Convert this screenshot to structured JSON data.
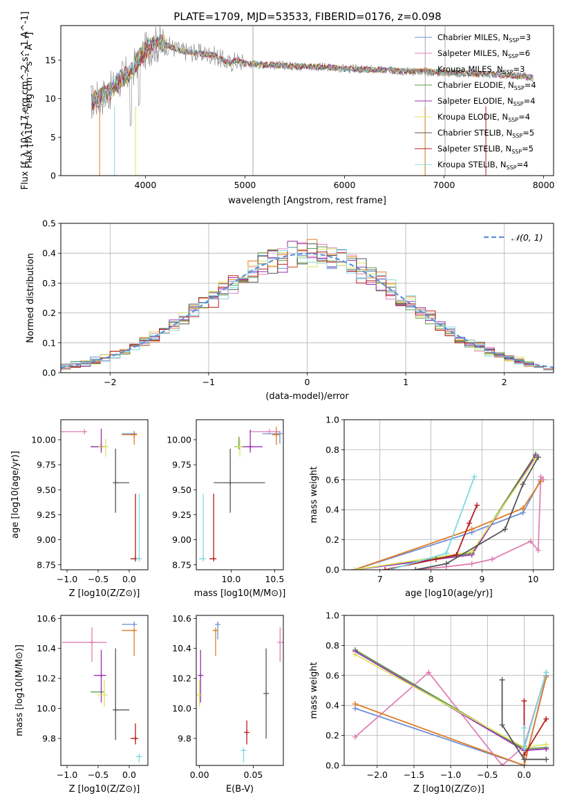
{
  "figure": {
    "title": "PLATE=1709, MJD=53533, FIBERID=0176, z=0.098"
  },
  "colors": {
    "Chabrier MILES": "#6d8fd6",
    "Salpeter MILES": "#e07fb4",
    "Kroupa MILES": "#e07b24",
    "Chabrier ELODIE": "#5b9a47",
    "Salpeter ELODIE": "#9a2fb0",
    "Kroupa ELODIE": "#d9e561",
    "Chabrier STELIB": "#555555",
    "Salpeter STELIB": "#b51b1b",
    "Kroupa STELIB": "#7dd8df",
    "data": "#808080",
    "gauss": "#5b8fd6"
  },
  "chart_data": [
    {
      "id": "spectrum",
      "type": "line",
      "title": "PLATE=1709, MJD=53533, FIBERID=0176, z=0.098",
      "xlabel": "wavelength [Angstrom, rest frame]",
      "ylabel": "Flux [f_λ 10^-17 erg cm^-2 s^-1 A^-1]",
      "xlim": [
        3150,
        8100
      ],
      "ylim": [
        0,
        19.5
      ],
      "xticks": [
        4000,
        5000,
        6000,
        7000,
        8000
      ],
      "yticks": [
        0,
        5,
        10,
        15
      ],
      "legend": "right",
      "series": [
        {
          "name": "Chabrier MILES, N_SSP=3",
          "color": "#6d8fd6"
        },
        {
          "name": "Salpeter MILES, N_SSP=6",
          "color": "#e07fb4"
        },
        {
          "name": "Kroupa MILES, N_SSP=3",
          "color": "#e07b24"
        },
        {
          "name": "Chabrier ELODIE, N_SSP=4",
          "color": "#5b9a47"
        },
        {
          "name": "Salpeter ELODIE, N_SSP=4",
          "color": "#9a2fb0"
        },
        {
          "name": "Kroupa ELODIE, N_SSP=4",
          "color": "#d9e561"
        },
        {
          "name": "Chabrier STELIB, N_SSP=5",
          "color": "#555555"
        },
        {
          "name": "Salpeter STELIB, N_SSP=5",
          "color": "#b51b1b"
        },
        {
          "name": "Kroupa STELIB, N_SSP=4",
          "color": "#7dd8df"
        }
      ],
      "continuum": {
        "x": [
          3450,
          3550,
          3650,
          3750,
          3850,
          3950,
          4050,
          4150,
          4250,
          4350,
          4500,
          4700,
          4850,
          4900,
          5000,
          5200,
          5400,
          5600,
          5800,
          6000,
          6200,
          6400,
          6600,
          6800,
          7000,
          7200,
          7400,
          7600,
          7800,
          7900
        ],
        "y": [
          9.5,
          10.2,
          11.0,
          12.5,
          13.5,
          15.5,
          16.8,
          17.2,
          16.8,
          16.2,
          16.0,
          15.6,
          14.5,
          15.0,
          14.6,
          14.4,
          14.3,
          14.2,
          14.1,
          13.9,
          13.8,
          13.7,
          13.6,
          13.5,
          13.4,
          13.3,
          13.2,
          13.1,
          12.9,
          12.7
        ]
      }
    },
    {
      "id": "residuals",
      "type": "histogram",
      "xlabel": "(data-model)/error",
      "ylabel": "Normed distribution",
      "xlim": [
        -2.5,
        2.5
      ],
      "ylim": [
        0,
        0.5
      ],
      "xticks": [
        -2,
        -1,
        0,
        1,
        2
      ],
      "yticks": [
        0.0,
        0.1,
        0.2,
        0.3,
        0.4,
        0.5
      ],
      "legend_label": "N(0,1)",
      "legend": "top-right",
      "grid": true,
      "bin_width": 0.1
    },
    {
      "id": "age_vs_Z",
      "type": "scatter",
      "xlabel": "Z [log10(Z/Z⊙)]",
      "ylabel": "age [log10(age/yr)]",
      "xlim": [
        -1.1,
        0.3
      ],
      "ylim": [
        8.7,
        10.2
      ],
      "xticks": [
        -1.0,
        -0.5,
        0.0
      ],
      "yticks": [
        8.75,
        9.0,
        9.25,
        9.5,
        9.75,
        10.0
      ],
      "points": [
        {
          "model": "Chabrier MILES",
          "x": 0.08,
          "y": 10.06,
          "xerr": [
            0.2,
            0.0
          ],
          "yerr": [
            0.0,
            0.0
          ]
        },
        {
          "model": "Salpeter MILES",
          "x": -0.72,
          "y": 10.08,
          "xerr": [
            0.38,
            0.0
          ],
          "yerr": [
            0.0,
            0.0
          ]
        },
        {
          "model": "Kroupa MILES",
          "x": 0.08,
          "y": 10.05,
          "xerr": [
            0.2,
            0.0
          ],
          "yerr": [
            0.1,
            0.0
          ]
        },
        {
          "model": "Chabrier ELODIE",
          "x": -0.45,
          "y": 9.93,
          "xerr": [
            0.17,
            0.0
          ],
          "yerr": [
            0.0,
            0.0
          ]
        },
        {
          "model": "Salpeter ELODIE",
          "x": -0.45,
          "y": 9.93,
          "xerr": [
            0.17,
            0.08
          ],
          "yerr": [
            0.06,
            0.18
          ]
        },
        {
          "model": "Kroupa ELODIE",
          "x": -0.38,
          "y": 9.93,
          "xerr": [
            0.12,
            0.0
          ],
          "yerr": [
            0.1,
            0.08
          ]
        },
        {
          "model": "Chabrier STELIB",
          "x": -0.22,
          "y": 9.57,
          "xerr": [
            0.0,
            0.22
          ],
          "yerr": [
            0.3,
            0.34
          ]
        },
        {
          "model": "Salpeter STELIB",
          "x": 0.1,
          "y": 8.81,
          "xerr": [
            0.08,
            0.0
          ],
          "yerr": [
            0.0,
            0.65
          ]
        },
        {
          "model": "Kroupa STELIB",
          "x": 0.16,
          "y": 8.81,
          "xerr": [
            0.05,
            0.0
          ],
          "yerr": [
            0.0,
            0.65
          ]
        }
      ]
    },
    {
      "id": "age_vs_mass",
      "type": "scatter",
      "xlabel": "mass [log10(M/M⊙)]",
      "ylabel": "",
      "xlim": [
        9.6,
        10.6
      ],
      "ylim": [
        8.7,
        10.2
      ],
      "xticks": [
        10.0,
        10.5
      ],
      "yticks": [
        8.75,
        9.0,
        9.25,
        9.5,
        9.75,
        10.0
      ],
      "points": [
        {
          "model": "Chabrier MILES",
          "x": 10.56,
          "y": 10.06,
          "xerr": [
            0.2,
            0.0
          ],
          "yerr": [
            0.1,
            0.0
          ]
        },
        {
          "model": "Salpeter MILES",
          "x": 10.44,
          "y": 10.08,
          "xerr": [
            0.23,
            0.12
          ],
          "yerr": [
            0.0,
            0.0
          ]
        },
        {
          "model": "Kroupa MILES",
          "x": 10.52,
          "y": 10.05,
          "xerr": [
            0.05,
            0.0
          ],
          "yerr": [
            0.1,
            0.08
          ]
        },
        {
          "model": "Chabrier ELODIE",
          "x": 10.09,
          "y": 9.93,
          "xerr": [
            0.05,
            0.0
          ],
          "yerr": [
            0.0,
            0.1
          ]
        },
        {
          "model": "Salpeter ELODIE",
          "x": 10.22,
          "y": 9.93,
          "xerr": [
            0.1,
            0.14
          ],
          "yerr": [
            0.06,
            0.17
          ]
        },
        {
          "model": "Kroupa ELODIE",
          "x": 10.1,
          "y": 9.93,
          "xerr": [
            0.05,
            0.0
          ],
          "yerr": [
            0.1,
            0.08
          ]
        },
        {
          "model": "Chabrier STELIB",
          "x": 9.99,
          "y": 9.57,
          "xerr": [
            0.19,
            0.4
          ],
          "yerr": [
            0.3,
            0.34
          ]
        },
        {
          "model": "Salpeter STELIB",
          "x": 9.8,
          "y": 8.81,
          "xerr": [
            0.05,
            0.0
          ],
          "yerr": [
            0.0,
            0.65
          ]
        },
        {
          "model": "Kroupa STELIB",
          "x": 9.68,
          "y": 8.81,
          "xerr": [
            0.05,
            0.0
          ],
          "yerr": [
            0.0,
            0.65
          ]
        }
      ]
    },
    {
      "id": "massweight_vs_age",
      "type": "line",
      "xlabel": "age [log10(age/yr)]",
      "ylabel": "mass weight",
      "xlim": [
        6.3,
        10.4
      ],
      "ylim": [
        0,
        1.0
      ],
      "xticks": [
        7,
        8,
        9,
        10
      ],
      "yticks": [
        0.0,
        0.2,
        0.4,
        0.6,
        0.8,
        1.0
      ],
      "grid": true,
      "series": [
        {
          "model": "Chabrier MILES",
          "x": [
            6.5,
            8.8,
            9.8,
            10.15
          ],
          "y": [
            0.0,
            0.25,
            0.38,
            0.6
          ]
        },
        {
          "model": "Salpeter MILES",
          "x": [
            7.7,
            8.3,
            8.8,
            9.2,
            9.95,
            10.1,
            10.15,
            10.2
          ],
          "y": [
            0.0,
            0.02,
            0.04,
            0.07,
            0.19,
            0.13,
            0.62,
            0.6
          ]
        },
        {
          "model": "Kroupa MILES",
          "x": [
            6.5,
            8.8,
            9.8,
            10.15
          ],
          "y": [
            0.0,
            0.27,
            0.41,
            0.59
          ]
        },
        {
          "model": "Chabrier ELODIE",
          "x": [
            6.5,
            8.8,
            10.05
          ],
          "y": [
            0.0,
            0.11,
            0.77
          ]
        },
        {
          "model": "Salpeter ELODIE",
          "x": [
            6.5,
            8.8,
            10.05
          ],
          "y": [
            0.0,
            0.1,
            0.76
          ]
        },
        {
          "model": "Kroupa ELODIE",
          "x": [
            6.5,
            8.8,
            10.05
          ],
          "y": [
            0.0,
            0.12,
            0.74
          ]
        },
        {
          "model": "Chabrier STELIB",
          "x": [
            7.7,
            8.3,
            9.45,
            9.8,
            10.1
          ],
          "y": [
            0.0,
            0.04,
            0.27,
            0.57,
            0.75
          ]
        },
        {
          "model": "Salpeter STELIB",
          "x": [
            7.1,
            8.1,
            8.5,
            8.75,
            8.9
          ],
          "y": [
            0.0,
            0.07,
            0.1,
            0.31,
            0.43
          ]
        },
        {
          "model": "Kroupa STELIB",
          "x": [
            7.2,
            8.3,
            8.85
          ],
          "y": [
            0.0,
            0.11,
            0.62
          ]
        }
      ]
    },
    {
      "id": "mass_vs_Z",
      "type": "scatter",
      "xlabel": "Z [log10(Z/Z⊙)]",
      "ylabel": "mass [log10(M/M⊙)]",
      "xlim": [
        -1.1,
        0.3
      ],
      "ylim": [
        9.62,
        10.62
      ],
      "xticks": [
        -1.0,
        -0.5,
        0.0
      ],
      "yticks": [
        9.8,
        10.0,
        10.2,
        10.4,
        10.6
      ],
      "points": [
        {
          "model": "Chabrier MILES",
          "x": 0.08,
          "y": 10.56,
          "xerr": [
            0.2,
            0.0
          ],
          "yerr": [
            0.0,
            0.0
          ]
        },
        {
          "model": "Salpeter MILES",
          "x": -0.6,
          "y": 10.44,
          "xerr": [
            0.48,
            0.24
          ],
          "yerr": [
            0.13,
            0.1
          ]
        },
        {
          "model": "Kroupa MILES",
          "x": 0.08,
          "y": 10.52,
          "xerr": [
            0.2,
            0.0
          ],
          "yerr": [
            0.17,
            0.0
          ]
        },
        {
          "model": "Chabrier ELODIE",
          "x": -0.45,
          "y": 10.11,
          "xerr": [
            0.17,
            0.0
          ],
          "yerr": [
            0.0,
            0.0
          ]
        },
        {
          "model": "Salpeter ELODIE",
          "x": -0.45,
          "y": 10.22,
          "xerr": [
            0.12,
            0.08
          ],
          "yerr": [
            0.18,
            0.17
          ]
        },
        {
          "model": "Kroupa ELODIE",
          "x": -0.4,
          "y": 10.09,
          "xerr": [
            0.12,
            0.05
          ],
          "yerr": [
            0.08,
            0.1
          ]
        },
        {
          "model": "Chabrier STELIB",
          "x": -0.22,
          "y": 9.99,
          "xerr": [
            0.0,
            0.22
          ],
          "yerr": [
            0.2,
            0.41
          ]
        },
        {
          "model": "Salpeter STELIB",
          "x": 0.1,
          "y": 9.8,
          "xerr": [
            0.08,
            0.0
          ],
          "yerr": [
            0.04,
            0.1
          ]
        },
        {
          "model": "Kroupa STELIB",
          "x": 0.16,
          "y": 9.68,
          "xerr": [
            0.05,
            0.0
          ],
          "yerr": [
            0.04,
            0.0
          ]
        }
      ]
    },
    {
      "id": "mass_vs_ebv",
      "type": "scatter",
      "xlabel": "E(B-V)",
      "ylabel": "",
      "xlim": [
        -0.003,
        0.078
      ],
      "ylim": [
        9.62,
        10.62
      ],
      "xticks": [
        0.0,
        0.05
      ],
      "yticks": [
        9.8,
        10.0,
        10.2,
        10.4,
        10.6
      ],
      "points": [
        {
          "model": "Chabrier MILES",
          "x": 0.017,
          "y": 10.56,
          "yerr": [
            0.1,
            0.0
          ]
        },
        {
          "model": "Salpeter MILES",
          "x": 0.075,
          "y": 10.44,
          "yerr": [
            0.13,
            0.1
          ]
        },
        {
          "model": "Kroupa MILES",
          "x": 0.015,
          "y": 10.52,
          "yerr": [
            0.17,
            0.0
          ]
        },
        {
          "model": "Salpeter ELODIE",
          "x": 0.001,
          "y": 10.22,
          "yerr": [
            0.18,
            0.17
          ]
        },
        {
          "model": "Kroupa ELODIE",
          "x": 0.0,
          "y": 10.09,
          "yerr": [
            0.08,
            0.1
          ]
        },
        {
          "model": "Chabrier STELIB",
          "x": 0.062,
          "y": 10.1,
          "yerr": [
            0.3,
            0.3
          ]
        },
        {
          "model": "Salpeter STELIB",
          "x": 0.044,
          "y": 9.84,
          "yerr": [
            0.08,
            0.08
          ]
        },
        {
          "model": "Kroupa STELIB",
          "x": 0.041,
          "y": 9.72,
          "yerr": [
            0.08,
            0.0
          ]
        }
      ]
    },
    {
      "id": "massweight_vs_Z",
      "type": "line",
      "xlabel": "Z [log10(Z/Z⊙)]",
      "ylabel": "mass weight",
      "xlim": [
        -2.45,
        0.4
      ],
      "ylim": [
        0,
        1.0
      ],
      "xticks": [
        -2.0,
        -1.5,
        -1.0,
        -0.5,
        0.0
      ],
      "yticks": [
        0.0,
        0.2,
        0.4,
        0.6,
        0.8,
        1.0
      ],
      "grid": true,
      "series": [
        {
          "model": "Chabrier MILES",
          "x": [
            -2.3,
            0.0,
            0.3
          ],
          "y": [
            0.38,
            0.0,
            0.6
          ]
        },
        {
          "model": "Salpeter MILES",
          "x": [
            -2.3,
            -1.3,
            -0.3,
            0.0,
            0.3
          ],
          "y": [
            0.19,
            0.62,
            0.0,
            0.13,
            0.62
          ]
        },
        {
          "model": "Kroupa MILES",
          "x": [
            -2.3,
            0.0,
            0.3
          ],
          "y": [
            0.41,
            0.0,
            0.59
          ]
        },
        {
          "model": "Chabrier ELODIE",
          "x": [
            -2.3,
            0.0,
            0.3
          ],
          "y": [
            0.77,
            0.11,
            0.12
          ]
        },
        {
          "model": "Salpeter ELODIE",
          "x": [
            -2.3,
            0.0,
            0.3
          ],
          "y": [
            0.76,
            0.1,
            0.11
          ]
        },
        {
          "model": "Kroupa ELODIE",
          "x": [
            -2.3,
            0.0,
            0.3
          ],
          "y": [
            0.74,
            0.12,
            0.14
          ]
        },
        {
          "model": "Chabrier STELIB",
          "x": [
            -0.3,
            -0.3,
            0.0,
            0.3
          ],
          "y": [
            0.57,
            0.27,
            0.04,
            0.04
          ]
        },
        {
          "model": "Salpeter STELIB",
          "x": [
            0.0,
            0.0,
            0.3
          ],
          "y": [
            0.43,
            0.07,
            0.31
          ]
        },
        {
          "model": "Kroupa STELIB",
          "x": [
            0.0,
            0.0,
            0.3
          ],
          "y": [
            0.25,
            0.11,
            0.62
          ]
        }
      ]
    }
  ]
}
